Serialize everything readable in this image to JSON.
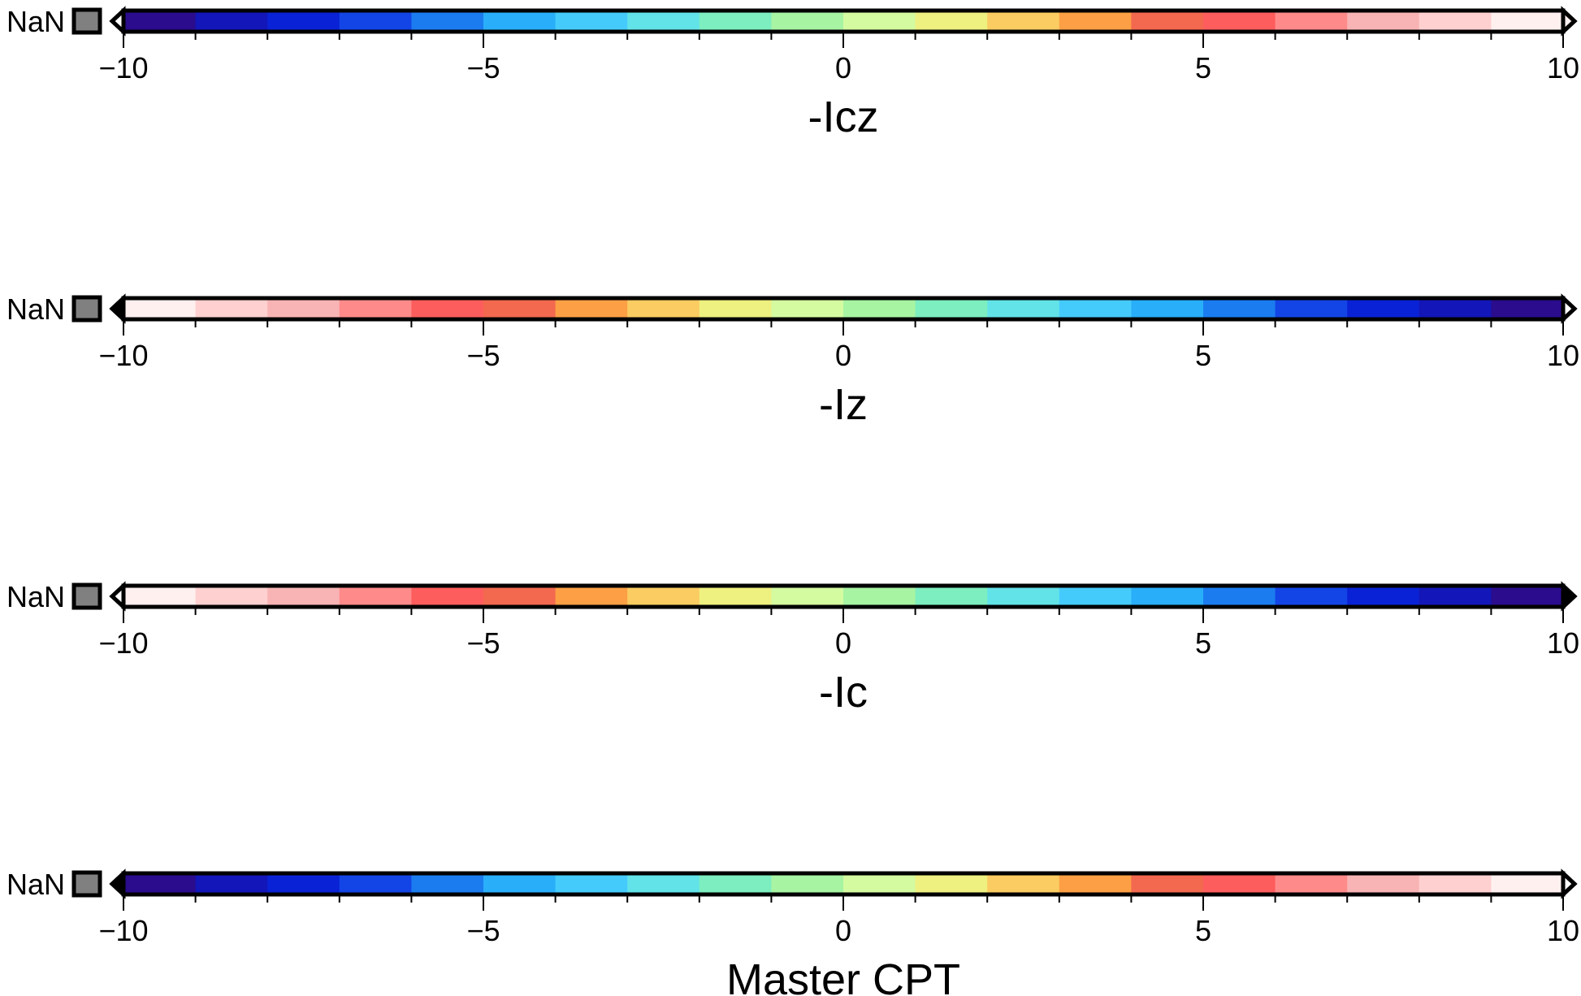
{
  "chart_data": {
    "type": "colorbar",
    "nan_label": "NaN",
    "nan_color": "#808080",
    "xlim": [
      -10,
      10
    ],
    "major_ticks": [
      -10,
      -5,
      0,
      5,
      10
    ],
    "tick_labels": [
      "−10",
      "−5",
      "0",
      "5",
      "10"
    ],
    "minor_ticks": [
      -9,
      -8,
      -7,
      -6,
      -4,
      -3,
      -2,
      -1,
      1,
      2,
      3,
      4,
      6,
      7,
      8,
      9
    ],
    "bins": [
      -10,
      -9,
      -8,
      -7,
      -6,
      -5,
      -4,
      -3,
      -2,
      -1,
      0,
      1,
      2,
      3,
      4,
      5,
      6,
      7,
      8,
      9,
      10
    ],
    "master_colors": [
      "#2a0c8d",
      "#1316b8",
      "#0a22d6",
      "#1345e6",
      "#1b7cf0",
      "#29aef9",
      "#45cbfb",
      "#62e3e8",
      "#7deebf",
      "#a7f4a3",
      "#d4fba0",
      "#eef07f",
      "#fbcc61",
      "#fc9f45",
      "#f3694f",
      "#fe5d5d",
      "#fe8a8a",
      "#f8b4b4",
      "#ffd0d0",
      "#fff0f0"
    ],
    "bars": [
      {
        "label": "-Icz",
        "reversed": false,
        "low_triangle": "#ffffff",
        "high_triangle": "#fff0f0"
      },
      {
        "label": "-Iz",
        "reversed": true,
        "low_triangle": "#000000",
        "high_triangle": "#ffffff"
      },
      {
        "label": "-Ic",
        "reversed": true,
        "low_triangle": "#ffffff",
        "high_triangle": "#000000"
      },
      {
        "label": "Master CPT",
        "reversed": false,
        "low_triangle": "#000000",
        "high_triangle": "#ffffff"
      }
    ]
  }
}
